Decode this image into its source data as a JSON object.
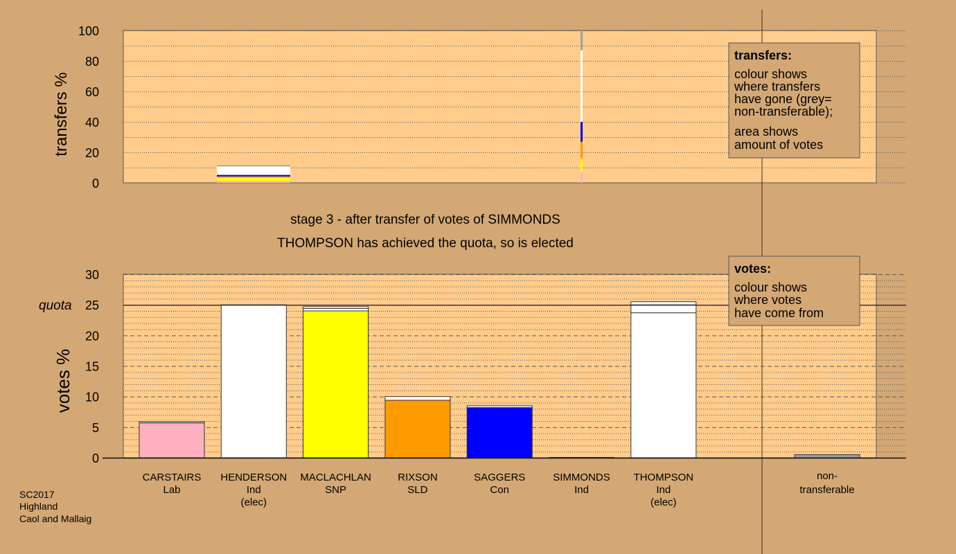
{
  "colors": {
    "background": "#d4a874",
    "plot": "#ffcc8c",
    "Lab": "#ffb0c0",
    "Ind": "#ffffff",
    "SNP": "#ffff00",
    "SLD": "#ff9a00",
    "Con": "#0000ff",
    "nontransferable": "#a0a0a0"
  },
  "chart_data": [
    {
      "type": "bar",
      "panel": "transfers",
      "ylabel": "transfers %",
      "ylim": [
        0,
        100
      ],
      "yticks": [
        0,
        20,
        40,
        60,
        80,
        100
      ],
      "stacks": [
        {
          "candidate": "HENDERSON",
          "segments": [
            {
              "party": "Lab",
              "value": 1.2
            },
            {
              "party": "SNP",
              "value": 2.2
            },
            {
              "party": "SLD",
              "value": 0.8
            },
            {
              "party": "Con",
              "value": 1.0
            },
            {
              "party": "Ind",
              "value": 5.6
            },
            {
              "party": "nontransferable",
              "value": 0.8
            }
          ]
        },
        {
          "candidate": "SIMMONDS",
          "segments": [
            {
              "party": "Lab",
              "value": 7
            },
            {
              "party": "SNP",
              "value": 9
            },
            {
              "party": "SLD",
              "value": 11
            },
            {
              "party": "Con",
              "value": 13
            },
            {
              "party": "Ind",
              "value": 47
            },
            {
              "party": "nontransferable",
              "value": 13
            }
          ]
        }
      ],
      "legend": {
        "title": "transfers:",
        "lines_a": [
          "colour shows",
          "where transfers",
          "have gone (grey=",
          "non-transferable);"
        ],
        "lines_b": [
          "area shows",
          "amount of votes"
        ]
      }
    },
    {
      "type": "bar",
      "panel": "votes",
      "title_line1": "stage 3 - after transfer of votes of SIMMONDS",
      "title_line2": "THOMPSON has achieved the quota, so is elected",
      "ylabel": "votes %",
      "ylim": [
        0,
        30
      ],
      "yticks": [
        0,
        5,
        10,
        15,
        20,
        25,
        30
      ],
      "quota": {
        "label": "quota",
        "value": 25
      },
      "categories": [
        {
          "name": "CARSTAIRS",
          "party": "Lab",
          "note": "",
          "segments": [
            {
              "party": "Lab",
              "value": 5.7
            },
            {
              "party": "Ind",
              "value": 0.2
            }
          ]
        },
        {
          "name": "HENDERSON",
          "party": "Ind",
          "note": "(elec)",
          "segments": [
            {
              "party": "Ind",
              "value": 25.0
            }
          ]
        },
        {
          "name": "MACLACHLAN",
          "party": "SNP",
          "note": "",
          "segments": [
            {
              "party": "SNP",
              "value": 24.0
            },
            {
              "party": "Ind",
              "value": 0.4
            },
            {
              "party": "Ind",
              "value": 0.3
            }
          ]
        },
        {
          "name": "RIXSON",
          "party": "SLD",
          "note": "",
          "segments": [
            {
              "party": "SLD",
              "value": 9.4
            },
            {
              "party": "Ind",
              "value": 0.6
            }
          ]
        },
        {
          "name": "SAGGERS",
          "party": "Con",
          "note": "",
          "segments": [
            {
              "party": "Con",
              "value": 8.2
            },
            {
              "party": "Ind",
              "value": 0.3
            }
          ]
        },
        {
          "name": "SIMMONDS",
          "party": "Ind",
          "note": "",
          "segments": []
        },
        {
          "name": "THOMPSON",
          "party": "Ind",
          "note": "(elec)",
          "segments": [
            {
              "party": "Ind",
              "value": 23.7
            },
            {
              "party": "Ind",
              "value": 1.3
            },
            {
              "party": "Ind",
              "value": 0.5
            }
          ]
        }
      ],
      "nontransferable": {
        "line1": "non-",
        "line2": "transferable",
        "value": 0.5
      },
      "legend": {
        "title": "votes:",
        "lines": [
          "colour shows",
          "where votes",
          "have come from"
        ]
      }
    }
  ],
  "footer": {
    "lines": [
      "SC2017",
      "Highland",
      "Caol and Mallaig"
    ]
  }
}
